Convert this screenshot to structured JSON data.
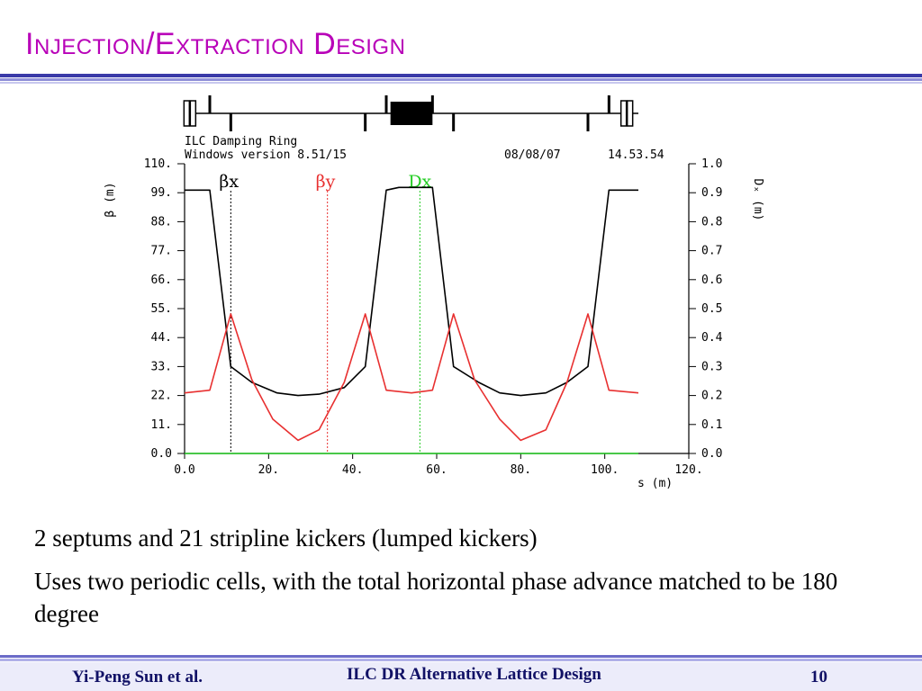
{
  "slide": {
    "title": "Injection/Extraction Design",
    "bullets": [
      "2 septums and 21 stripline kickers (lumped kickers)",
      "Uses two periodic cells, with the total horizontal phase advance matched to be 180 degree"
    ],
    "footer": {
      "author": "Yi-Peng Sun et al.",
      "center": "ILC DR Alternative Lattice Design",
      "page": "10"
    }
  },
  "chart_data": {
    "type": "line",
    "header": {
      "left_line1": "ILC Damping Ring",
      "left_line2": "Windows version 8.51/15",
      "date": "08/08/07",
      "time": "14.53.54"
    },
    "xlabel": "s  (m)",
    "ylabel_left": "β (m)",
    "ylabel_right": "Dₓ (m)",
    "xlim": [
      0,
      120
    ],
    "ylim_left": [
      0,
      110
    ],
    "ylim_right": [
      0,
      1.0
    ],
    "x_ticks": [
      "0.0",
      "20.",
      "40.",
      "60.",
      "80.",
      "100.",
      "120."
    ],
    "y_left_ticks": [
      "0.0",
      "11.",
      "22.",
      "33.",
      "44.",
      "55.",
      "66.",
      "77.",
      "88.",
      "99.",
      "110."
    ],
    "y_right_ticks": [
      "0.0",
      "0.1",
      "0.2",
      "0.3",
      "0.4",
      "0.5",
      "0.6",
      "0.7",
      "0.8",
      "0.9",
      "1.0"
    ],
    "legend": [
      {
        "label": "βx",
        "color": "#000000",
        "marker_x": 11
      },
      {
        "label": "βy",
        "color": "#e83030",
        "marker_x": 34
      },
      {
        "label": "Dx",
        "color": "#22cc22",
        "marker_x": 56
      }
    ],
    "series": [
      {
        "name": "βx",
        "color": "#000000",
        "x": [
          0,
          6,
          11,
          16,
          22,
          27,
          32,
          38,
          43,
          48,
          51,
          54,
          59,
          64,
          70,
          75,
          80,
          86,
          91,
          96,
          101,
          108
        ],
        "y": [
          100,
          100,
          33,
          27,
          23,
          22,
          22.5,
          25,
          33,
          100,
          101,
          101,
          101,
          33,
          27,
          23,
          22,
          23,
          27,
          33,
          100,
          100
        ]
      },
      {
        "name": "βy",
        "color": "#e83030",
        "x": [
          0,
          6,
          11,
          16,
          21,
          27,
          32,
          38,
          43,
          48,
          54,
          59,
          64,
          69,
          75,
          80,
          86,
          91,
          96,
          101,
          108
        ],
        "y": [
          23,
          24,
          53,
          28,
          13,
          5,
          9,
          27,
          53,
          24,
          23,
          24,
          53,
          28,
          13,
          5,
          9,
          27,
          53,
          24,
          23
        ]
      },
      {
        "name": "Dx",
        "color": "#22cc22",
        "x": [
          0,
          108
        ],
        "y": [
          0,
          0
        ]
      }
    ],
    "lattice_elements": [
      {
        "kind": "septum",
        "s": 0.5
      },
      {
        "kind": "septum",
        "s": 2.0
      },
      {
        "kind": "quad",
        "s": 6,
        "side": "up"
      },
      {
        "kind": "quad",
        "s": 11,
        "side": "down"
      },
      {
        "kind": "quad",
        "s": 43,
        "side": "down"
      },
      {
        "kind": "quad",
        "s": 48,
        "side": "up"
      },
      {
        "kind": "kicker",
        "s0": 49,
        "s1": 59
      },
      {
        "kind": "quad",
        "s": 59,
        "side": "up"
      },
      {
        "kind": "quad",
        "s": 64,
        "side": "down"
      },
      {
        "kind": "quad",
        "s": 96,
        "side": "down"
      },
      {
        "kind": "quad",
        "s": 101,
        "side": "up"
      },
      {
        "kind": "septum",
        "s": 104.5
      },
      {
        "kind": "septum",
        "s": 106
      }
    ]
  }
}
